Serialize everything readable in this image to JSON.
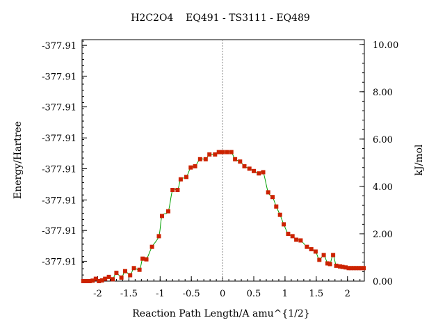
{
  "chart_data": {
    "type": "line",
    "title": "H2C2O4    EQ491 - TS3111 - EQ489",
    "xlabel": "Reaction Path Length/A amu^{1/2}",
    "ylabel_left": "Energy/Hartree",
    "ylabel_right": "kJ/mol",
    "xlim": [
      -2.25,
      2.27
    ],
    "ylim_right": [
      0,
      10.2
    ],
    "x_ticks": [
      {
        "value": -2,
        "label": "-2"
      },
      {
        "value": -1.5,
        "label": "-1.5"
      },
      {
        "value": -1,
        "label": "-1"
      },
      {
        "value": -0.5,
        "label": "-0.5"
      },
      {
        "value": 0,
        "label": "0"
      },
      {
        "value": 0.5,
        "label": "0.5"
      },
      {
        "value": 1,
        "label": "1"
      },
      {
        "value": 1.5,
        "label": "1.5"
      },
      {
        "value": 2,
        "label": "2"
      }
    ],
    "left_ticks": [
      {
        "value": 0.84,
        "label": "-377.91"
      },
      {
        "value": 2.14,
        "label": "-377.91"
      },
      {
        "value": 3.43,
        "label": "-377.91"
      },
      {
        "value": 4.75,
        "label": "-377.91"
      },
      {
        "value": 6.05,
        "label": "-377.91"
      },
      {
        "value": 7.36,
        "label": "-377.91"
      },
      {
        "value": 8.66,
        "label": "-377.91"
      },
      {
        "value": 9.96,
        "label": "-377.91"
      }
    ],
    "right_ticks": [
      {
        "value": 0,
        "label": "0.00"
      },
      {
        "value": 2,
        "label": "2.00"
      },
      {
        "value": 4,
        "label": "4.00"
      },
      {
        "value": 6,
        "label": "6.00"
      },
      {
        "value": 8,
        "label": "8.00"
      },
      {
        "value": 10,
        "label": "10.00"
      }
    ],
    "ts_marker_x": 0,
    "series": [
      {
        "color": "#00a000",
        "marker_color": "#cc2200",
        "points": [
          [
            -2.23,
            0.0
          ],
          [
            -2.18,
            0.0
          ],
          [
            -2.13,
            0.0
          ],
          [
            -2.08,
            0.02
          ],
          [
            -2.03,
            0.1
          ],
          [
            -1.98,
            0.0
          ],
          [
            -1.93,
            0.03
          ],
          [
            -1.88,
            0.1
          ],
          [
            -1.82,
            0.18
          ],
          [
            -1.76,
            0.08
          ],
          [
            -1.7,
            0.35
          ],
          [
            -1.62,
            0.15
          ],
          [
            -1.56,
            0.42
          ],
          [
            -1.48,
            0.25
          ],
          [
            -1.42,
            0.55
          ],
          [
            -1.33,
            0.48
          ],
          [
            -1.28,
            0.95
          ],
          [
            -1.22,
            0.92
          ],
          [
            -1.13,
            1.45
          ],
          [
            -1.02,
            1.9
          ],
          [
            -0.97,
            2.75
          ],
          [
            -0.87,
            2.95
          ],
          [
            -0.8,
            3.85
          ],
          [
            -0.72,
            3.85
          ],
          [
            -0.67,
            4.3
          ],
          [
            -0.58,
            4.4
          ],
          [
            -0.51,
            4.8
          ],
          [
            -0.44,
            4.85
          ],
          [
            -0.36,
            5.15
          ],
          [
            -0.27,
            5.15
          ],
          [
            -0.21,
            5.35
          ],
          [
            -0.12,
            5.35
          ],
          [
            -0.06,
            5.45
          ],
          [
            0.0,
            5.45
          ],
          [
            0.07,
            5.45
          ],
          [
            0.14,
            5.45
          ],
          [
            0.2,
            5.15
          ],
          [
            0.28,
            5.05
          ],
          [
            0.35,
            4.85
          ],
          [
            0.43,
            4.75
          ],
          [
            0.5,
            4.65
          ],
          [
            0.58,
            4.55
          ],
          [
            0.65,
            4.6
          ],
          [
            0.73,
            3.75
          ],
          [
            0.8,
            3.55
          ],
          [
            0.86,
            3.15
          ],
          [
            0.92,
            2.8
          ],
          [
            0.98,
            2.4
          ],
          [
            1.05,
            2.0
          ],
          [
            1.12,
            1.9
          ],
          [
            1.18,
            1.75
          ],
          [
            1.25,
            1.72
          ],
          [
            1.35,
            1.45
          ],
          [
            1.42,
            1.35
          ],
          [
            1.49,
            1.25
          ],
          [
            1.55,
            0.9
          ],
          [
            1.62,
            1.1
          ],
          [
            1.68,
            0.75
          ],
          [
            1.72,
            0.72
          ],
          [
            1.77,
            1.1
          ],
          [
            1.82,
            0.65
          ],
          [
            1.88,
            0.62
          ],
          [
            1.92,
            0.6
          ],
          [
            1.97,
            0.58
          ],
          [
            2.02,
            0.55
          ],
          [
            2.06,
            0.55
          ],
          [
            2.1,
            0.55
          ],
          [
            2.14,
            0.55
          ],
          [
            2.18,
            0.55
          ],
          [
            2.22,
            0.55
          ],
          [
            2.26,
            0.55
          ]
        ]
      }
    ]
  }
}
